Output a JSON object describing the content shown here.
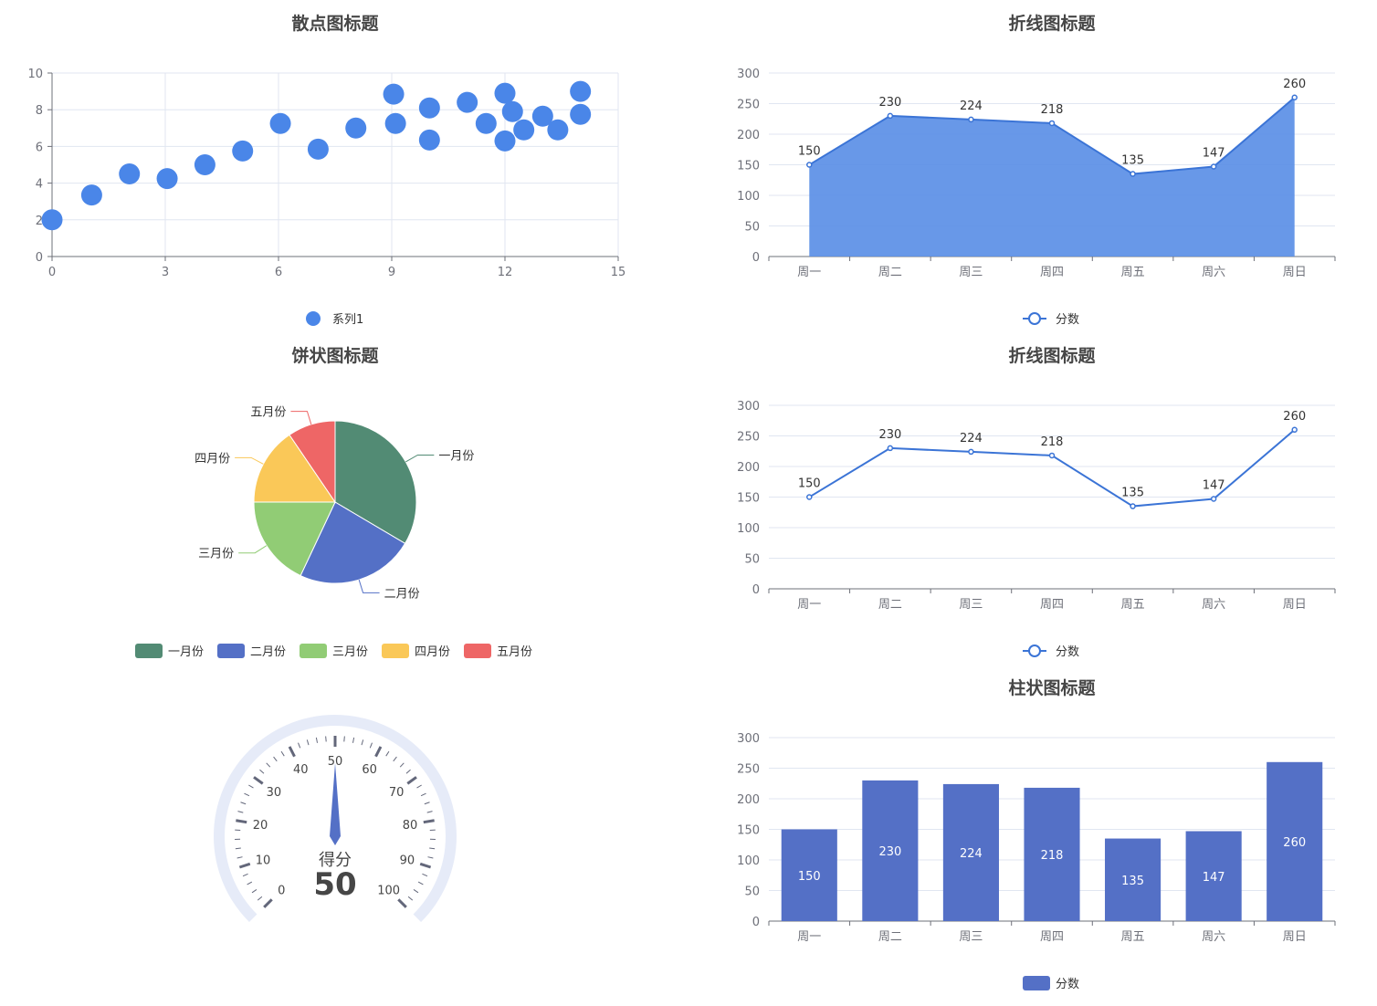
{
  "colors": {
    "scatter": "#4a86e8",
    "area_fill": "#5b8fe6",
    "line": "#3b74d6",
    "bar": "#5470c6",
    "pie": [
      "#528b74",
      "#5470c6",
      "#91cc75",
      "#fac858",
      "#ee6666"
    ],
    "gauge_track": "#e6ebf8",
    "gauge_tick": "#63677a",
    "pointer": "#5470c6"
  },
  "chart_data": [
    {
      "type": "scatter",
      "title": "散点图标题",
      "legend": [
        "系列1"
      ],
      "xlim": [
        0,
        15
      ],
      "ylim": [
        0,
        10
      ],
      "xticks": [
        "0",
        "3",
        "6",
        "9",
        "12",
        "15"
      ],
      "yticks": [
        "0",
        "2",
        "4",
        "6",
        "8",
        "10"
      ],
      "series": [
        {
          "name": "系列1",
          "points": [
            [
              0,
              2.0
            ],
            [
              1.05,
              3.35
            ],
            [
              2.05,
              4.5
            ],
            [
              3.05,
              4.25
            ],
            [
              4.05,
              5.0
            ],
            [
              5.05,
              5.75
            ],
            [
              6.05,
              7.25
            ],
            [
              7.05,
              5.85
            ],
            [
              8.05,
              7.0
            ],
            [
              9.05,
              8.85
            ],
            [
              9.1,
              7.25
            ],
            [
              10.0,
              8.1
            ],
            [
              10.0,
              6.35
            ],
            [
              11.0,
              8.4
            ],
            [
              11.5,
              7.25
            ],
            [
              12.0,
              8.9
            ],
            [
              12.0,
              6.3
            ],
            [
              12.2,
              7.9
            ],
            [
              12.5,
              6.9
            ],
            [
              13.0,
              7.65
            ],
            [
              13.4,
              6.9
            ],
            [
              14.0,
              9.0
            ],
            [
              14.0,
              7.75
            ]
          ]
        }
      ]
    },
    {
      "type": "area",
      "title": "折线图标题",
      "legend": [
        "分数"
      ],
      "categories": [
        "周一",
        "周二",
        "周三",
        "周四",
        "周五",
        "周六",
        "周日"
      ],
      "values": [
        150,
        230,
        224,
        218,
        135,
        147,
        260
      ],
      "data_labels": [
        "150",
        "230",
        "224",
        "218",
        "135",
        "147",
        "260"
      ],
      "ylim": [
        0,
        300
      ],
      "yticks": [
        "0",
        "50",
        "100",
        "150",
        "200",
        "250",
        "300"
      ]
    },
    {
      "type": "pie",
      "title": "饼状图标题",
      "legend": [
        "一月份",
        "二月份",
        "三月份",
        "四月份",
        "五月份"
      ],
      "slices": [
        {
          "label": "一月份",
          "value": 33.5
        },
        {
          "label": "二月份",
          "value": 23.5
        },
        {
          "label": "三月份",
          "value": 18.0
        },
        {
          "label": "四月份",
          "value": 15.5
        },
        {
          "label": "五月份",
          "value": 9.5
        }
      ]
    },
    {
      "type": "line",
      "title": "折线图标题",
      "legend": [
        "分数"
      ],
      "categories": [
        "周一",
        "周二",
        "周三",
        "周四",
        "周五",
        "周六",
        "周日"
      ],
      "values": [
        150,
        230,
        224,
        218,
        135,
        147,
        260
      ],
      "data_labels": [
        "150",
        "230",
        "224",
        "218",
        "135",
        "147",
        "260"
      ],
      "ylim": [
        0,
        300
      ],
      "yticks": [
        "0",
        "50",
        "100",
        "150",
        "200",
        "250",
        "300"
      ]
    },
    {
      "type": "gauge",
      "title": "",
      "detail_label": "得分",
      "value": 50,
      "value_text": "50",
      "min": 0,
      "max": 100,
      "tick_labels": [
        "0",
        "10",
        "20",
        "30",
        "40",
        "50",
        "60",
        "70",
        "80",
        "90",
        "100"
      ]
    },
    {
      "type": "bar",
      "title": "柱状图标题",
      "legend": [
        "分数"
      ],
      "categories": [
        "周一",
        "周二",
        "周三",
        "周四",
        "周五",
        "周六",
        "周日"
      ],
      "values": [
        150,
        230,
        224,
        218,
        135,
        147,
        260
      ],
      "data_labels": [
        "150",
        "230",
        "224",
        "218",
        "135",
        "147",
        "260"
      ],
      "ylim": [
        0,
        300
      ],
      "yticks": [
        "0",
        "50",
        "100",
        "150",
        "200",
        "250",
        "300"
      ]
    }
  ]
}
